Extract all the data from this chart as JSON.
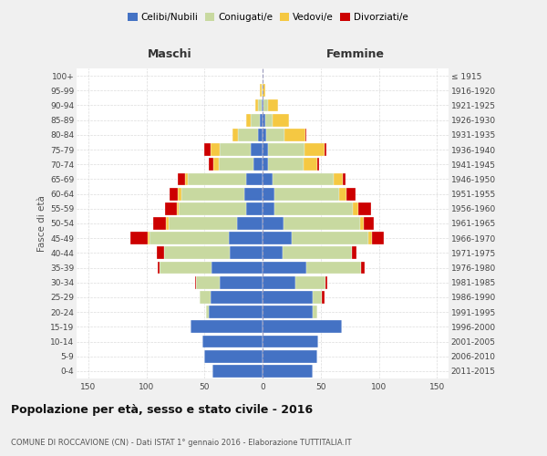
{
  "age_groups": [
    "0-4",
    "5-9",
    "10-14",
    "15-19",
    "20-24",
    "25-29",
    "30-34",
    "35-39",
    "40-44",
    "45-49",
    "50-54",
    "55-59",
    "60-64",
    "65-69",
    "70-74",
    "75-79",
    "80-84",
    "85-89",
    "90-94",
    "95-99",
    "100+"
  ],
  "birth_years": [
    "2011-2015",
    "2006-2010",
    "2001-2005",
    "1996-2000",
    "1991-1995",
    "1986-1990",
    "1981-1985",
    "1976-1980",
    "1971-1975",
    "1966-1970",
    "1961-1965",
    "1956-1960",
    "1951-1955",
    "1946-1950",
    "1941-1945",
    "1936-1940",
    "1931-1935",
    "1926-1930",
    "1921-1925",
    "1916-1920",
    "≤ 1915"
  ],
  "male": {
    "celibi": [
      43,
      50,
      52,
      62,
      46,
      45,
      37,
      44,
      28,
      29,
      22,
      14,
      16,
      14,
      8,
      10,
      4,
      2,
      1,
      0,
      0
    ],
    "coniugati": [
      0,
      0,
      0,
      0,
      3,
      9,
      20,
      45,
      57,
      68,
      59,
      58,
      54,
      50,
      30,
      27,
      17,
      8,
      3,
      1,
      0
    ],
    "vedovi": [
      0,
      0,
      0,
      0,
      0,
      0,
      0,
      0,
      0,
      2,
      2,
      2,
      3,
      3,
      4,
      8,
      5,
      4,
      2,
      1,
      0
    ],
    "divorziati": [
      0,
      0,
      0,
      0,
      0,
      0,
      1,
      1,
      6,
      15,
      11,
      10,
      7,
      6,
      4,
      5,
      0,
      0,
      0,
      0,
      0
    ]
  },
  "female": {
    "nubili": [
      43,
      47,
      48,
      68,
      43,
      43,
      28,
      38,
      17,
      25,
      18,
      10,
      10,
      9,
      5,
      5,
      3,
      2,
      1,
      0,
      0
    ],
    "coniugate": [
      0,
      0,
      0,
      0,
      4,
      8,
      26,
      47,
      60,
      66,
      66,
      68,
      56,
      52,
      30,
      31,
      16,
      7,
      4,
      0,
      0
    ],
    "vedove": [
      0,
      0,
      0,
      0,
      0,
      0,
      0,
      0,
      0,
      3,
      3,
      4,
      6,
      8,
      12,
      17,
      18,
      14,
      8,
      2,
      0
    ],
    "divorziate": [
      0,
      0,
      0,
      0,
      0,
      2,
      2,
      3,
      4,
      10,
      9,
      11,
      8,
      2,
      2,
      2,
      1,
      0,
      0,
      0,
      0
    ]
  },
  "colors": {
    "celibi": "#4472c4",
    "coniugati": "#c8d9a0",
    "vedovi": "#f5c842",
    "divorziati": "#cc0000"
  },
  "title": "Popolazione per età, sesso e stato civile - 2016",
  "subtitle": "COMUNE DI ROCCAVIONE (CN) - Dati ISTAT 1° gennaio 2016 - Elaborazione TUTTITALIA.IT",
  "xlabel_left": "Maschi",
  "xlabel_right": "Femmine",
  "ylabel_left": "Fasce di età",
  "xlim": 160,
  "bg_color": "#f0f0f0",
  "plot_bg": "#ffffff",
  "grid_color": "#cccccc"
}
